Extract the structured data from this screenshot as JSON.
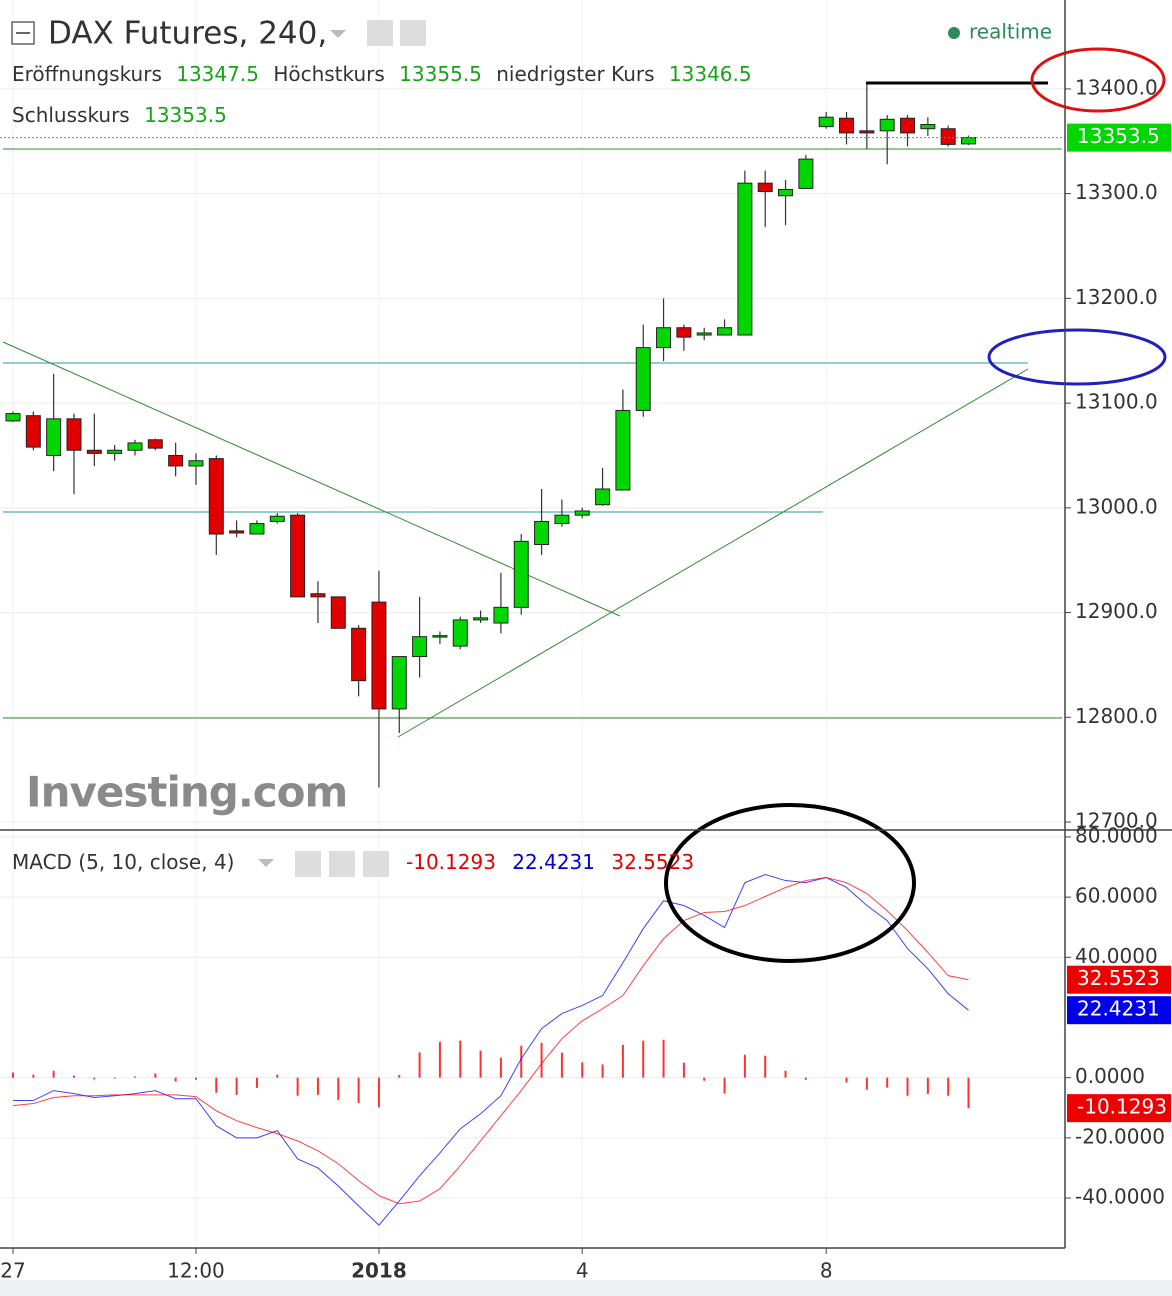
{
  "chart_data": [
    {
      "type": "candlestick",
      "title": "DAX Futures, 240,",
      "status": "realtime",
      "watermark": "Investing.com",
      "ohlc_names": {
        "open": "Eröffnungskurs",
        "high": "Höchstkurs",
        "low": "niedrigster Kurs",
        "close": "Schlusskurs"
      },
      "categories": [
        "27",
        null,
        null,
        null,
        null,
        null,
        null,
        null,
        null,
        "12:00",
        null,
        null,
        null,
        null,
        null,
        null,
        null,
        null,
        "2018",
        null,
        null,
        null,
        null,
        null,
        null,
        null,
        null,
        null,
        "4",
        null,
        null,
        null,
        null,
        null,
        null,
        null,
        null,
        null,
        null,
        null,
        "8",
        null,
        null,
        null,
        null,
        null,
        null,
        null
      ],
      "open": [
        13083,
        13088,
        13050,
        13085,
        13055,
        13052,
        13055,
        13065,
        13050,
        13040,
        13047,
        12978,
        12975,
        12987,
        12993,
        12918,
        12915,
        12885,
        12910,
        12808,
        12858,
        12877,
        12868,
        12893,
        12890,
        12905,
        12965,
        12985,
        12993,
        13003,
        13017,
        13093,
        13153,
        13172,
        13165,
        13165,
        13165,
        13310,
        13298,
        13305,
        13364,
        13372,
        13360,
        13360,
        13372,
        13362,
        13362,
        13347.5
      ],
      "high": [
        13092,
        13092,
        13128,
        13090,
        13090,
        13060,
        13065,
        13066,
        13062,
        13052,
        13050,
        12988,
        12988,
        12995,
        12995,
        12930,
        12915,
        12888,
        12940,
        12858,
        12915,
        12882,
        12896,
        12902,
        12938,
        12975,
        13018,
        13008,
        13000,
        13038,
        13113,
        13175,
        13200,
        13175,
        13172,
        13180,
        13322,
        13322,
        13313,
        13337,
        13378,
        13378,
        13405,
        13375,
        13375,
        13373,
        13365,
        13355.5
      ],
      "low": [
        13082,
        13055,
        13035,
        13013,
        13040,
        13045,
        13050,
        13055,
        13030,
        13022,
        12955,
        12972,
        12975,
        12985,
        12915,
        12890,
        12885,
        12820,
        12733,
        12785,
        12838,
        12870,
        12865,
        12890,
        12880,
        12898,
        12955,
        12982,
        12990,
        13002,
        13017,
        13087,
        13140,
        13150,
        13160,
        13165,
        13165,
        13268,
        13270,
        13305,
        13362,
        13347,
        13343,
        13328,
        13345,
        13355,
        13345,
        13346.5
      ],
      "close": [
        13090,
        13058,
        13085,
        13055,
        13052,
        13055,
        13062,
        13057,
        13040,
        13045,
        12975,
        12976,
        12985,
        12992,
        12915,
        12915,
        12885,
        12835,
        12808,
        12858,
        12877,
        12878,
        12893,
        12895,
        12905,
        12968,
        12987,
        12993,
        12997,
        13018,
        13093,
        13153,
        13172,
        13163,
        13167,
        13172,
        13310,
        13302,
        13304,
        13333,
        13373,
        13358,
        13358,
        13371,
        13358,
        13366,
        13347,
        13353.5
      ],
      "up_color": "#00d600",
      "down_color": "#e00000",
      "ylim": [
        12692.4,
        13484.9
      ],
      "yticks": [
        {
          "value": 12700,
          "label": "12700.0"
        },
        {
          "value": 12800,
          "label": "12800.0"
        },
        {
          "value": 12900,
          "label": "12900.0"
        },
        {
          "value": 13000,
          "label": "13000.0"
        },
        {
          "value": 13100,
          "label": "13100.0"
        },
        {
          "value": 13200,
          "label": "13200.0"
        },
        {
          "value": 13300,
          "label": "13300.0"
        },
        {
          "value": 13400,
          "label": "13400.0"
        }
      ],
      "grid": true
    },
    {
      "type": "macd",
      "title": "MACD (5, 10, close, 4)",
      "series": [
        {
          "color": "#ff3030",
          "values": [
            1.7,
            1.0,
            2.3,
            0.7,
            -0.6,
            -0.3,
            0.4,
            1.4,
            -1.3,
            -0.7,
            -5,
            -5.7,
            -3.4,
            1.0,
            -6,
            -5.7,
            -7.4,
            -8.4,
            -9.8,
            0.9,
            8.4,
            11.9,
            12.3,
            9,
            6.6,
            10.6,
            11.6,
            8.3,
            5.1,
            4.4,
            10.9,
            12.3,
            12.6,
            5,
            -1,
            -5.3,
            7.6,
            7.3,
            2.3,
            -0.7,
            0,
            -1.6,
            -4,
            -3.3,
            -6,
            -5.4,
            -6,
            -10.1293
          ]
        },
        {
          "color": "#0000ff",
          "values": [
            -7.6,
            -7.6,
            -4.3,
            -5.3,
            -6.6,
            -6,
            -5.3,
            -4.3,
            -7,
            -7,
            -16,
            -20,
            -20,
            -17.6,
            -27,
            -30,
            -36,
            -42.6,
            -49,
            -41,
            -32.6,
            -25,
            -17,
            -12,
            -6,
            6.3,
            16.3,
            21.3,
            24,
            27.3,
            38.2,
            49.5,
            58.8,
            57.2,
            53.9,
            49.9,
            64.8,
            67.5,
            65.5,
            64.8,
            66.5,
            63.2,
            57.2,
            52.2,
            42.9,
            36.2,
            27.9,
            22.4231
          ]
        },
        {
          "color": "#ff0000",
          "values": [
            -9.3,
            -8.6,
            -6.6,
            -6,
            -6,
            -5.7,
            -5.7,
            -5.7,
            -5.7,
            -6.3,
            -11,
            -14.3,
            -16.6,
            -18.6,
            -21,
            -24.3,
            -28.6,
            -34.2,
            -39.2,
            -41.9,
            -41,
            -36.9,
            -29.3,
            -21,
            -12.6,
            -4.3,
            4.7,
            13,
            18.9,
            22.9,
            27.3,
            37.2,
            46.2,
            52.2,
            54.9,
            55.2,
            57.2,
            60.2,
            63.2,
            65.5,
            66.5,
            64.8,
            61.2,
            55.5,
            48.9,
            41.6,
            33.9,
            32.5523
          ]
        }
      ],
      "ylim": [
        -56.6,
        82.3
      ],
      "yticks": [
        {
          "value": -40,
          "label": "-40.0000"
        },
        {
          "value": -20,
          "label": "-20.0000"
        },
        {
          "value": 0,
          "label": "0.0000"
        },
        {
          "value": 40,
          "label": "40.0000"
        },
        {
          "value": 60,
          "label": "60.0000"
        },
        {
          "value": 80,
          "label": "80.0000"
        }
      ],
      "grid": true
    }
  ]
}
